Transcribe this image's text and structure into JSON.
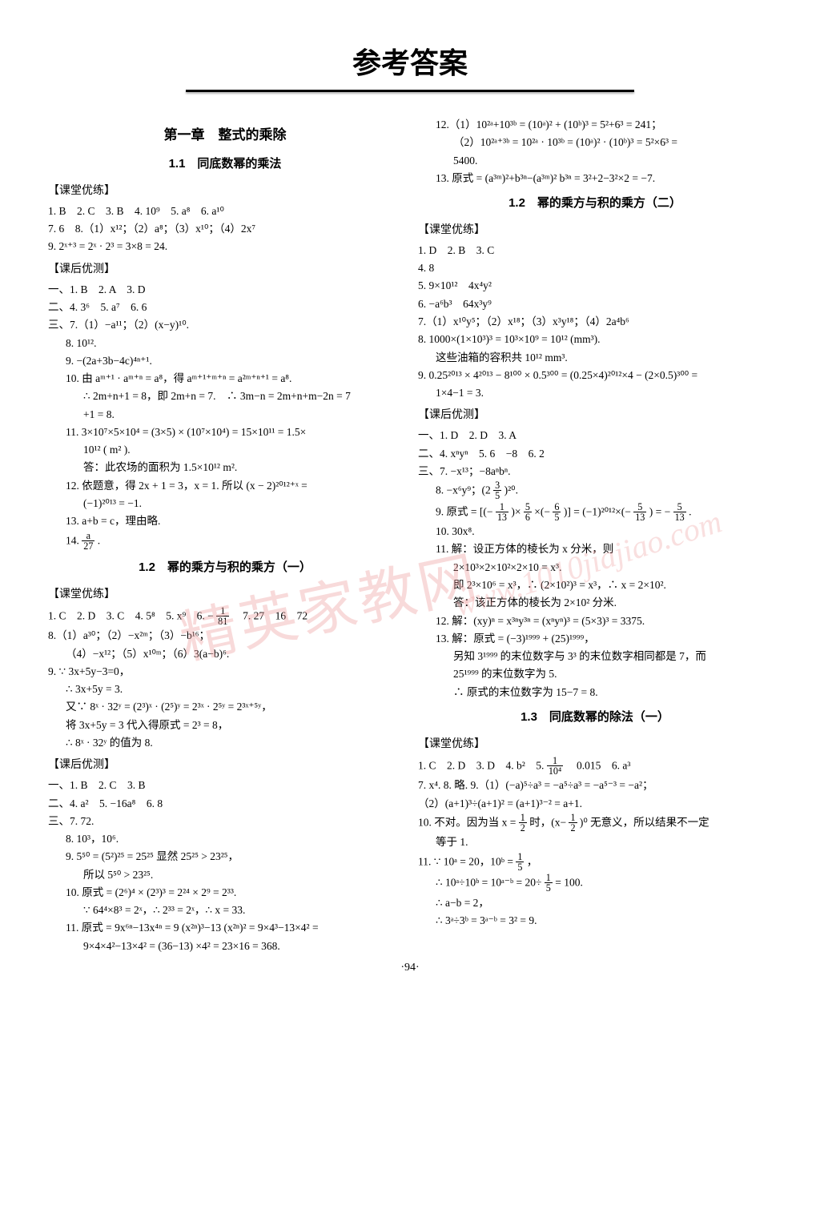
{
  "page_title": "参考答案",
  "page_number": "·94·",
  "watermark_main": "精英家教网",
  "watermark_url": "www.1010jiajiao.com",
  "left": {
    "chapter": "第一章　整式的乘除",
    "s1_title": "1.1　同底数幂的乘法",
    "h1": "【课堂优练】",
    "l1": "1. B　2. C　3. B　4. 10⁹　5. a⁸　6. a¹⁰",
    "l2": "7. 6　8.（1）x¹²；（2）a⁸；（3）x¹⁰；（4）2x⁷",
    "l3": "9. 2ˣ⁺³ = 2ˣ · 2³ = 3×8 = 24.",
    "h2": "【课后优测】",
    "l4": "一、1. B　2. A　3. D",
    "l5": "二、4. 3⁶　5. a⁷　6. 6",
    "l6": "三、7.（1）−a¹¹；（2）(x−y)¹⁰.",
    "l7": "8. 10¹².",
    "l8": "9. −(2a+3b−4c)⁴ⁿ⁺¹.",
    "l9": "10. 由 aᵐ⁺¹ · aᵐ⁺ⁿ = a⁸，得 aᵐ⁺¹⁺ᵐ⁺ⁿ = a²ᵐ⁺ⁿ⁺¹ = a⁸.",
    "l10": "∴ 2m+n+1 = 8，即 2m+n = 7.　∴ 3m−n = 2m+n+m−2n = 7",
    "l11": "+1 = 8.",
    "l12": "11. 3×10⁷×5×10⁴ = (3×5) × (10⁷×10⁴) = 15×10¹¹ = 1.5×",
    "l13": "10¹² ( m² ).",
    "l14": "答：此农场的面积为 1.5×10¹² m².",
    "l15": "12. 依题意，得 2x + 1 = 3，x = 1. 所以 (x − 2)²⁰¹²⁺ˣ =",
    "l16": "(−1)²⁰¹³ = −1.",
    "l17": "13. a+b = c，理由略.",
    "l18a": "14. ",
    "l18_num": "a",
    "l18_den": "27",
    "l18b": ".",
    "s2_title": "1.2　幂的乘方与积的乘方（一）",
    "h3": "【课堂优练】",
    "l19a": "1. C　2. D　3. C　4. 5⁸　5. x⁹　6. −",
    "l19_num": "1",
    "l19_den": "81",
    "l19b": "　7. 27　16　72",
    "l20": "8.（1）a³⁰；（2）−x²ᵐ；（3）−b¹⁶；",
    "l21": "（4）−x¹²；（5）x¹⁰ᵐ；（6）3(a−b)⁶.",
    "l22": "9. ∵ 3x+5y−3=0，",
    "l23": "∴ 3x+5y = 3.",
    "l24": "又∵ 8ˣ · 32ʸ = (2³)ˣ · (2⁵)ʸ = 2³ˣ · 2⁵ʸ = 2³ˣ⁺⁵ʸ，",
    "l25": "将 3x+5y = 3 代入得原式 = 2³ = 8，",
    "l26": "∴ 8ˣ · 32ʸ 的值为 8.",
    "h4": "【课后优测】",
    "l27": "一、1. B　2. C　3. B",
    "l28": "二、4. a²　5. −16a⁸　6. 8",
    "l29": "三、7. 72.",
    "l30": "8. 10³，10⁶.",
    "l31": "9. 5⁵⁰ = (5²)²⁵ = 25²⁵ 显然 25²⁵ > 23²⁵，",
    "l32": "所以 5⁵⁰ > 23²⁵.",
    "l33": "10. 原式 = (2⁶)⁴ × (2³)³ = 2²⁴ × 2⁹ = 2³³.",
    "l34": "∵ 64⁴×8³ = 2ˣ，∴ 2³³ = 2ˣ，∴ x = 33.",
    "l35": "11. 原式 = 9x⁶ⁿ−13x⁴ⁿ = 9 (x²ⁿ)³−13 (x²ⁿ)² = 9×4³−13×4² =",
    "l36": "9×4×4²−13×4² = (36−13) ×4² = 23×16 = 368."
  },
  "right": {
    "l1": "12.（1）10²ᵃ+10³ᵇ = (10ᵃ)² + (10ᵇ)³ = 5²+6³ = 241；",
    "l2": "（2）10²ᵃ⁺³ᵇ = 10²ᵃ · 10³ᵇ = (10ᵃ)² · (10ᵇ)³ = 5²×6³ =",
    "l3": "5400.",
    "l4": "13. 原式 = (a³ᵐ)²+b³ⁿ−(a³ᵐ)² b³ⁿ = 3²+2−3²×2 = −7.",
    "s1_title": "1.2　幂的乘方与积的乘方（二）",
    "h1": "【课堂优练】",
    "l5": "1. D　2. B　3. C",
    "l6": "4. 8",
    "l7": "5. 9×10¹²　4x⁴y²",
    "l8": "6. −a⁶b³　64x³y⁹",
    "l9": "7.（1）x¹⁰y⁵；（2）x¹⁸；（3）x³y¹⁸；（4）2a⁴b⁶",
    "l10": "8. 1000×(1×10³)³ = 10³×10⁹ = 10¹² (mm³).",
    "l11": "这些油箱的容积共 10¹² mm³.",
    "l12": "9. 0.25²⁰¹³ × 4²⁰¹³ − 8¹⁰⁰ × 0.5³⁰⁰ = (0.25×4)²⁰¹²×4 − (2×0.5)³⁰⁰ =",
    "l13": "1×4−1 = 3.",
    "h2": "【课后优测】",
    "l14": "一、1. D　2. D　3. A",
    "l15": "二、4. xⁿyⁿ　5. 6　−8　6. 2",
    "l16": "三、7. −x¹³；−8aⁿbⁿ.",
    "l17a": "8. −x⁶y⁹；(2 ",
    "l17_num": "3",
    "l17_den": "5",
    "l17b": ")²⁰.",
    "l18a": "9. 原式 = [(−",
    "l18_num1": "1",
    "l18_den1": "13",
    "l18b": ")×",
    "l18_num2": "5",
    "l18_den2": "6",
    "l18c": "×(−",
    "l18_num3": "6",
    "l18_den3": "5",
    "l18d": ")] = (−1)²⁰¹²×(−",
    "l18_num4": "5",
    "l18_den4": "13",
    "l18e": ") = −",
    "l18_num5": "5",
    "l18_den5": "13",
    "l18f": ".",
    "l19": "10. 30x⁸.",
    "l20": "11. 解：设正方体的棱长为 x 分米，则",
    "l21": "2×10³×2×10²×2×10 = x³.",
    "l22": "即 2³×10⁶ = x³，∴ (2×10²)³ = x³，∴ x = 2×10².",
    "l23": "答：该正方体的棱长为 2×10² 分米.",
    "l24": "12. 解：(xy)ⁿ = x³ⁿy³ⁿ = (xⁿyⁿ)³ = (5×3)³ = 3375.",
    "l25": "13. 解：原式 = (−3)¹⁹⁹⁹ + (25)¹⁹⁹⁹，",
    "l26": "另知 3¹⁹⁹⁹ 的末位数字与 3³ 的末位数字相同都是 7，而",
    "l27": "25¹⁹⁹⁹ 的末位数字为 5.",
    "l28": "∴ 原式的末位数字为 15−7 = 8.",
    "s2_title": "1.3　同底数幂的除法（一）",
    "h3": "【课堂优练】",
    "l29a": "1. C　2. D　3. D　4. b²　5. ",
    "l29_num": "1",
    "l29_den": "10⁴",
    "l29b": "　0.015　6. a³",
    "l30": "7. x⁴. 8. 略. 9.（1）(−a)⁵÷a³ = −a⁵÷a³ = −a⁵⁻³ = −a²；",
    "l31": "（2）(a+1)³÷(a+1)² = (a+1)³⁻² = a+1.",
    "l32a": "10. 不对。因为当 x = ",
    "l32_num1": "1",
    "l32_den1": "2",
    "l32b": "时，(x−",
    "l32_num2": "1",
    "l32_den2": "2",
    "l32c": ")⁰ 无意义，所以结果不一定",
    "l33": "等于 1.",
    "l34a": "11. ∵ 10ᵃ = 20，10ᵇ = ",
    "l34_num": "1",
    "l34_den": "5",
    "l34b": "，",
    "l35a": "∴ 10ᵃ÷10ᵇ = 10ᵃ⁻ᵇ = 20÷",
    "l35_num": "1",
    "l35_den": "5",
    "l35b": " = 100.",
    "l36": "∴ a−b = 2，",
    "l37": "∴ 3ᵃ÷3ᵇ = 3ᵃ⁻ᵇ = 3² = 9."
  }
}
